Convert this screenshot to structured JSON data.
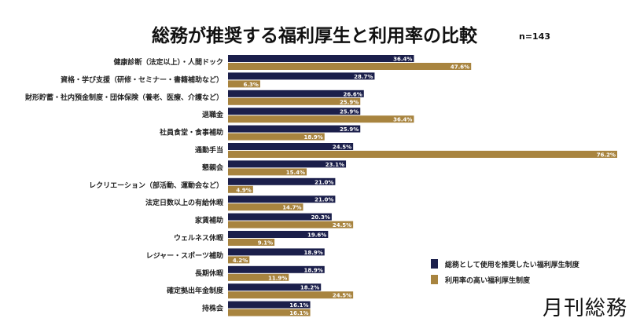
{
  "chart_data": {
    "type": "bar",
    "orientation": "horizontal",
    "title": "総務が推奨する福利厚生と利用率の比較",
    "subtitle": "n=143",
    "categories": [
      "健康診断（法定以上）・人間ドック",
      "資格・学び支援（研修・セミナー・書籍補助など）",
      "財形貯蓄・社内預金制度・団体保険（養老、医療、介護など）",
      "退職金",
      "社員食堂・食事補助",
      "通勤手当",
      "懇親会",
      "レクリエーション（部活動、運動会など）",
      "法定日数以上の有給休暇",
      "家賃補助",
      "ウェルネス休暇",
      "レジャー・スポーツ補助",
      "長期休暇",
      "確定拠出年金制度",
      "持株会"
    ],
    "series": [
      {
        "name": "総務として使用を推奨したい福利厚生制度",
        "color": "#1b1f4b",
        "values": [
          36.4,
          28.7,
          26.6,
          25.9,
          25.9,
          24.5,
          23.1,
          21.0,
          21.0,
          20.3,
          19.6,
          18.9,
          18.9,
          18.2,
          16.1
        ]
      },
      {
        "name": "利用率の高い福利厚生制度",
        "color": "#a8843f",
        "values": [
          47.6,
          6.3,
          25.9,
          36.4,
          18.9,
          76.2,
          15.4,
          4.9,
          14.7,
          24.5,
          9.1,
          4.2,
          11.9,
          24.5,
          16.1
        ]
      }
    ],
    "value_format": "%",
    "xlim": [
      0,
      76.2
    ],
    "grid": false,
    "legend": "bottom-right"
  },
  "logo": "月刊総務"
}
